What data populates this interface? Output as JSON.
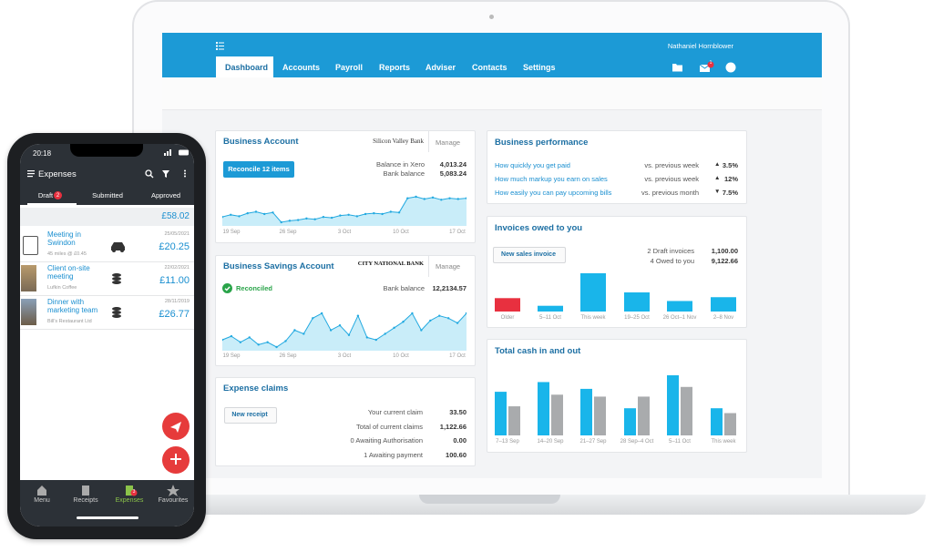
{
  "laptop": {
    "user": "Nathaniel Hornblower",
    "nav": [
      "Dashboard",
      "Accounts",
      "Payroll",
      "Reports",
      "Adviser",
      "Contacts",
      "Settings"
    ],
    "mail_badge": "1",
    "business_account": {
      "title": "Business Account",
      "bank": "Silicon Valley Bank",
      "manage": "Manage",
      "button": "Reconcile 12 items",
      "balance_label": "Balance in Xero",
      "balance": "4,013.24",
      "bank_label": "Bank balance",
      "bank_balance": "5,083.24",
      "dates": [
        "19 Sep",
        "26 Sep",
        "3 Oct",
        "10 Oct",
        "17 Oct"
      ],
      "sparkline": [
        45,
        48,
        46,
        50,
        52,
        49,
        51,
        38,
        40,
        41,
        43,
        42,
        45,
        44,
        47,
        48,
        46,
        49,
        50,
        49,
        52,
        51,
        70,
        72,
        69,
        71,
        68,
        70,
        69,
        70
      ]
    },
    "savings_account": {
      "title": "Business Savings Account",
      "bank": "CITY NATIONAL BANK",
      "manage": "Manage",
      "status": "Reconciled",
      "bank_label": "Bank balance",
      "bank_balance": "12,2134.57",
      "dates": [
        "19 Sep",
        "26 Sep",
        "3 Oct",
        "10 Oct",
        "17 Oct"
      ],
      "sparkline": [
        40,
        43,
        38,
        42,
        36,
        38,
        34,
        39,
        48,
        45,
        58,
        62,
        48,
        52,
        44,
        60,
        42,
        40,
        45,
        50,
        55,
        62,
        48,
        56,
        60,
        58,
        54,
        62
      ]
    },
    "expense_claims": {
      "title": "Expense claims",
      "button": "New receipt",
      "rows": [
        {
          "label": "Your current claim",
          "value": "33.50"
        },
        {
          "label": "Total of current claims",
          "value": "1,122.66"
        },
        {
          "label": "0 Awaiting Authorisation",
          "value": "0.00"
        },
        {
          "label": "1 Awaiting payment",
          "value": "100.60"
        }
      ]
    },
    "performance": {
      "title": "Business performance",
      "rows": [
        {
          "label": "How quickly you get paid",
          "compare": "vs. previous week",
          "trend": "▲",
          "value": "3.5%"
        },
        {
          "label": "How much markup you earn on sales",
          "compare": "vs. previous week",
          "trend": "▲",
          "value": "12%"
        },
        {
          "label": "How easily you can pay upcoming bills",
          "compare": "vs. previous month",
          "trend": "▼",
          "value": "7.5%"
        }
      ]
    },
    "invoices": {
      "title": "Invoices owed to you",
      "button": "New sales invoice",
      "summary": [
        {
          "label": "2 Draft invoices",
          "value": "1,100.00"
        },
        {
          "label": "4 Owed to you",
          "value": "9,122.66"
        }
      ],
      "categories": [
        "Older",
        "5–11 Oct",
        "This week",
        "19–25 Oct",
        "26 Oct–1 Nov",
        "2–8 Nov"
      ],
      "values": [
        14,
        6,
        40,
        20,
        11,
        15
      ],
      "colors": [
        "#e8303f",
        "#19b5ea",
        "#19b5ea",
        "#19b5ea",
        "#19b5ea",
        "#19b5ea"
      ]
    },
    "cash": {
      "title": "Total cash in and out",
      "categories": [
        "7–13 Sep",
        "14–20 Sep",
        "21–27 Sep",
        "28 Sep–4 Oct",
        "5–11 Oct",
        "This week"
      ],
      "series": [
        {
          "color": "#19b5ea",
          "values": [
            45,
            55,
            48,
            28,
            62,
            28
          ]
        },
        {
          "color": "#a9abad",
          "values": [
            30,
            42,
            40,
            40,
            50,
            23
          ]
        }
      ]
    }
  },
  "phone": {
    "time": "20:18",
    "title": "Expenses",
    "tabs": [
      "Draft",
      "Submitted",
      "Approved"
    ],
    "draft_badge": "2",
    "total": "£58.02",
    "items": [
      {
        "title": "Meeting in Swindon",
        "sub": "45 miles @ £0.45",
        "date": "25/05/2021",
        "amount": "£20.25"
      },
      {
        "title": "Client on-site meeting",
        "sub": "Lufkin Coffee",
        "date": "22/02/2021",
        "amount": "£11.00"
      },
      {
        "title": "Dinner with marketing team",
        "sub": "Bill's Restaurant Ltd",
        "date": "28/11/2019",
        "amount": "£26.77"
      }
    ],
    "nav": [
      "Menu",
      "Receipts",
      "Expenses",
      "Favourites"
    ],
    "nav_badge": "3"
  }
}
